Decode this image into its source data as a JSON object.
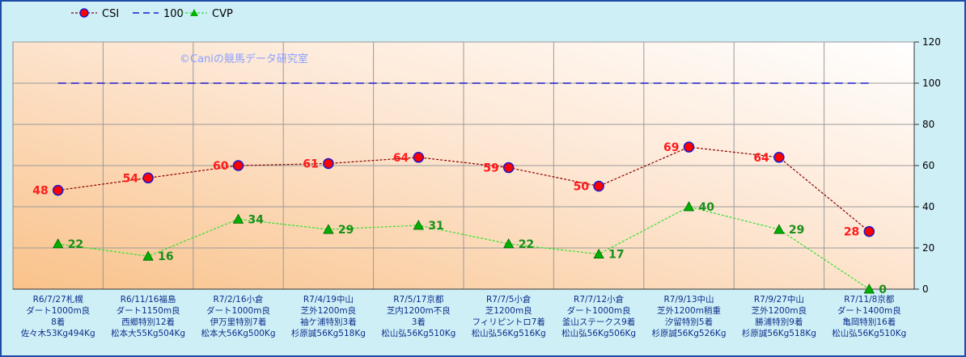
{
  "chart_data": {
    "type": "line",
    "watermark": "©Caniの競馬データ研究室",
    "ylim": [
      0,
      120
    ],
    "yticks": [
      0,
      20,
      40,
      60,
      80,
      100,
      120
    ],
    "categories": [
      [
        "R6/7/27札幌",
        "ダート1000m良",
        "8着",
        "佐々木53Kg494Kg"
      ],
      [
        "R6/11/16福島",
        "ダート1150m良",
        "西郷特別12着",
        "松本大55Kg504Kg"
      ],
      [
        "R7/2/16小倉",
        "ダート1000m良",
        "伊万里特別7着",
        "松本大56Kg500Kg"
      ],
      [
        "R7/4/19中山",
        "芝外1200m良",
        "袖ケ浦特別3着",
        "杉原誠56Kg518Kg"
      ],
      [
        "R7/5/17京都",
        "芝内1200m不良",
        "3着",
        "松山弘56Kg510Kg"
      ],
      [
        "R7/7/5小倉",
        "芝1200m良",
        "フィリピントロ7着",
        "松山弘56Kg516Kg"
      ],
      [
        "R7/7/12小倉",
        "ダート1000m良",
        "釜山ステークス9着",
        "松山弘56Kg506Kg"
      ],
      [
        "R7/9/13中山",
        "芝外1200m稍重",
        "汐留特別5着",
        "杉原誠56Kg526Kg"
      ],
      [
        "R7/9/27中山",
        "芝外1200m良",
        "勝浦特別9着",
        "杉原誠56Kg518Kg"
      ],
      [
        "R7/11/8京都",
        "ダート1400m良",
        "亀岡特別16着",
        "松山弘56Kg510Kg"
      ]
    ],
    "series": [
      {
        "name": "CSI",
        "values": [
          48,
          54,
          60,
          61,
          64,
          59,
          50,
          69,
          64,
          28
        ],
        "color": "#8b0000",
        "marker": "circle",
        "marker_color": "#ff0000"
      },
      {
        "name": "100",
        "values": [
          100,
          100,
          100,
          100,
          100,
          100,
          100,
          100,
          100,
          100
        ],
        "color": "#1a1acc",
        "marker": "none"
      },
      {
        "name": "CVP",
        "values": [
          22,
          16,
          34,
          29,
          31,
          22,
          17,
          40,
          29,
          0
        ],
        "color": "#2ee02e",
        "marker": "triangle",
        "marker_color": "#00b000"
      }
    ],
    "legend_position": "top-left",
    "grid": true
  }
}
